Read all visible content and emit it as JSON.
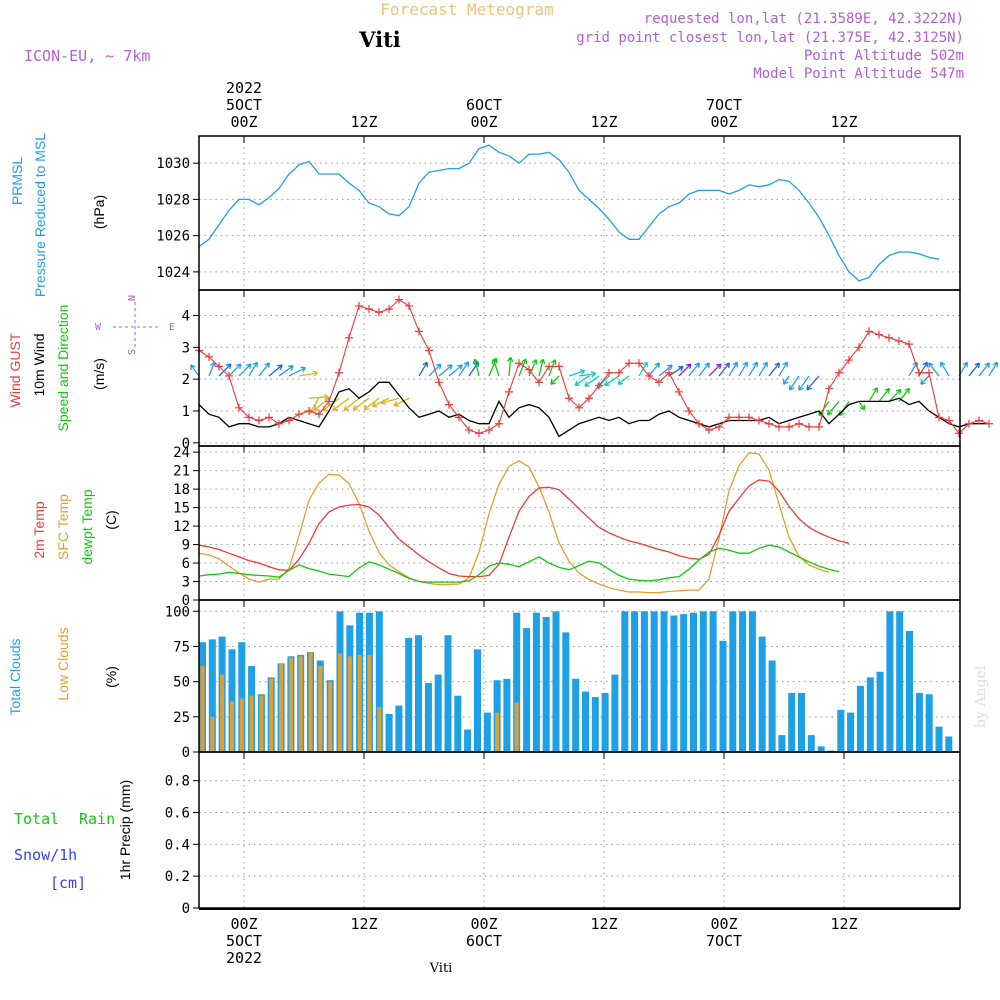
{
  "header": {
    "product": "Forecast Meteogram",
    "model": "ICON-EU, ~ 7km",
    "station": "Viti",
    "requested": "requested lon,lat (21.3589E, 42.3222N)",
    "gridpoint": "grid point closest lon,lat (21.375E, 42.3125N)",
    "point_alt": "Point Altitude 502m",
    "model_alt": "Model Point Altitude 547m",
    "credit": "by Angel",
    "footer_station": "Viti"
  },
  "colors": {
    "pressure": "#1ea0e6",
    "gust": "#e83c3c",
    "wind": "#000000",
    "dir": "#10c810",
    "temp2m": "#e83c3c",
    "sfc": "#e0a030",
    "dewpt": "#10c810",
    "total_clouds": "#1ea0e6",
    "low_clouds": "#e0a030",
    "rain": "#10c810",
    "snow": "#3c3cf0",
    "label_purple": "#b060d0",
    "compass": "#b060d0"
  },
  "chart_data": {
    "type": "line",
    "hours": 63,
    "time_axis": {
      "top_ticks": [
        "2022\n5OCT\n00Z",
        "12Z",
        "6OCT\n00Z",
        "12Z",
        "7OCT\n00Z",
        "12Z"
      ],
      "bottom_ticks": [
        "00Z\n5OCT\n2022",
        "12Z",
        "00Z\n6OCT",
        "12Z",
        "00Z\n7OCT",
        "12Z"
      ],
      "tick_hours": [
        5,
        17,
        29,
        41,
        53,
        65
      ]
    },
    "pressure": {
      "labels": [
        "PRMSL",
        "Pressure Reduced to MSL"
      ],
      "unit": "(hPa)",
      "ylim": [
        1023,
        1031.5
      ],
      "ticks": [
        1024,
        1026,
        1028,
        1030
      ],
      "values": [
        1025.4,
        1025.8,
        1026.6,
        1027.4,
        1028.0,
        1028.0,
        1027.7,
        1028.1,
        1028.6,
        1029.4,
        1029.9,
        1030.1,
        1029.4,
        1029.4,
        1029.4,
        1028.9,
        1028.5,
        1027.8,
        1027.6,
        1027.2,
        1027.1,
        1027.6,
        1028.9,
        1029.5,
        1029.6,
        1029.7,
        1029.7,
        1030.0,
        1030.8,
        1031.0,
        1030.6,
        1030.4,
        1030.0,
        1030.5,
        1030.5,
        1030.6,
        1030.2,
        1029.5,
        1028.5,
        1028.0,
        1027.5,
        1026.9,
        1026.2,
        1025.8,
        1025.8,
        1026.5,
        1027.2,
        1027.6,
        1027.8,
        1028.3,
        1028.5,
        1028.5,
        1028.5,
        1028.3,
        1028.5,
        1028.8,
        1028.7,
        1028.8,
        1029.1,
        1029.0,
        1028.5,
        1027.8,
        1027.0,
        1026.0,
        1024.9,
        1024.0,
        1023.5,
        1023.7,
        1024.4,
        1024.9,
        1025.1,
        1025.1,
        1025.0,
        1024.8,
        1024.7
      ]
    },
    "wind": {
      "labels": [
        "Wind GUST",
        "10m Wind",
        "Speed and Direction"
      ],
      "unit": "(m/s)",
      "ylim": [
        -0.1,
        4.8
      ],
      "ticks": [
        0,
        1,
        2,
        3,
        4
      ],
      "gust": [
        2.9,
        2.7,
        2.4,
        2.1,
        1.1,
        0.8,
        0.7,
        0.8,
        0.6,
        0.7,
        0.9,
        1.0,
        0.9,
        1.3,
        2.2,
        3.3,
        4.3,
        4.2,
        4.1,
        4.2,
        4.5,
        4.3,
        3.5,
        2.9,
        1.9,
        1.2,
        0.8,
        0.4,
        0.3,
        0.4,
        0.6,
        1.6,
        2.5,
        2.3,
        1.9,
        2.4,
        2.4,
        1.4,
        1.1,
        1.4,
        1.8,
        2.2,
        2.2,
        2.5,
        2.5,
        2.1,
        1.9,
        2.2,
        1.6,
        1.0,
        0.6,
        0.4,
        0.5,
        0.8,
        0.8,
        0.8,
        0.7,
        0.6,
        0.5,
        0.5,
        0.6,
        0.5,
        0.5,
        1.7,
        2.2,
        2.6,
        3.0,
        3.5,
        3.4,
        3.3,
        3.2,
        3.1,
        2.2,
        2.2,
        0.8,
        0.7,
        0.3,
        0.6,
        0.7,
        0.6
      ],
      "speed": [
        1.2,
        0.9,
        0.8,
        0.5,
        0.6,
        0.6,
        0.5,
        0.5,
        0.6,
        0.8,
        0.7,
        0.6,
        0.5,
        1.0,
        1.6,
        1.7,
        1.4,
        1.6,
        1.9,
        1.9,
        1.5,
        1.1,
        0.8,
        0.9,
        1.0,
        0.8,
        0.9,
        0.7,
        0.6,
        0.6,
        1.3,
        0.8,
        1.1,
        1.2,
        1.1,
        0.8,
        0.2,
        0.4,
        0.6,
        0.7,
        0.8,
        0.7,
        0.8,
        0.6,
        0.7,
        0.7,
        0.9,
        1.0,
        0.8,
        0.7,
        0.6,
        0.5,
        0.6,
        0.7,
        0.7,
        0.7,
        0.7,
        0.8,
        0.6,
        0.7,
        0.8,
        0.9,
        1.0,
        0.6,
        0.9,
        1.2,
        1.3,
        1.3,
        1.3,
        1.3,
        1.4,
        1.2,
        1.3,
        1.0,
        0.8,
        0.6,
        0.5,
        0.6,
        0.6,
        0.6
      ],
      "barb_u": [
        -0.3,
        0.2,
        0.5,
        0.5,
        0.5,
        0.3,
        0.4,
        0.6,
        0.7,
        1.0,
        1.2,
        1.4,
        -0.5,
        -1.0,
        -1.3,
        -1.2,
        -1.0,
        -1.1,
        -0.9,
        -1.0,
        -1.1,
        -0.6,
        0.3,
        0.5,
        0.6,
        0.6,
        0.4,
        0.4,
        -0.2,
        0.5,
        -0.3,
        0.1,
        0.4,
        0.4,
        0.2,
        0.3,
        -0.3,
        0.6,
        0.7,
        -0.6,
        -0.7,
        -0.5,
        -0.6,
        -0.4,
        0.3,
        0.4,
        0.6,
        0.6,
        0.5,
        0.4,
        0.4,
        0.5,
        0.4,
        0.3,
        0.3,
        0.3,
        0.3,
        0.4,
        0.3,
        -0.2,
        -0.4,
        -0.5,
        -0.7,
        -0.5,
        -0.6,
        -0.4,
        0.2,
        0.3,
        0.4,
        0.5,
        0.4,
        0.3,
        0.3,
        -0.3,
        -0.4,
        -0.3,
        0.3,
        0.4,
        0.4,
        0.3
      ],
      "barb_v": [
        0.4,
        0.5,
        0.5,
        0.5,
        0.5,
        0.5,
        0.5,
        0.5,
        0.5,
        0.5,
        0.2,
        0.1,
        -0.8,
        -0.8,
        -1.0,
        -0.9,
        -0.8,
        -0.8,
        -0.7,
        -0.5,
        -0.3,
        -0.3,
        0.5,
        0.5,
        0.5,
        0.5,
        0.6,
        0.6,
        0.8,
        1.2,
        0.9,
        1.2,
        1.0,
        0.9,
        0.8,
        0.8,
        -0.3,
        0.2,
        0.1,
        -0.4,
        -0.5,
        -0.5,
        -0.4,
        -0.3,
        0.5,
        0.5,
        0.5,
        0.4,
        0.5,
        0.5,
        0.5,
        0.5,
        0.5,
        0.5,
        0.5,
        0.5,
        0.5,
        0.5,
        0.5,
        -0.3,
        -0.6,
        -0.7,
        -0.8,
        -0.7,
        -0.7,
        -0.6,
        -0.3,
        0.5,
        0.5,
        0.5,
        0.5,
        0.5,
        0.5,
        -0.3,
        0.5,
        0.5,
        0.5,
        0.5,
        0.5,
        0.5
      ],
      "compass": [
        "N",
        "S",
        "W",
        "E"
      ]
    },
    "temperature": {
      "labels": [
        "2m Temp",
        "SFC Temp",
        "dewpt Temp"
      ],
      "unit": "(C)",
      "ylim": [
        0,
        25
      ],
      "ticks": [
        0,
        3,
        6,
        9,
        12,
        15,
        18,
        21,
        24
      ],
      "t2m": [
        8.9,
        8.6,
        8.2,
        7.6,
        7.0,
        6.4,
        6.0,
        5.4,
        4.9,
        4.8,
        6.6,
        9.2,
        12.4,
        14.3,
        15.1,
        15.4,
        15.5,
        15.1,
        13.8,
        11.8,
        9.9,
        8.6,
        7.3,
        6.2,
        5.2,
        4.3,
        3.9,
        3.8,
        3.8,
        4.0,
        5.8,
        10.2,
        14.4,
        16.8,
        18.2,
        18.3,
        17.9,
        16.4,
        14.8,
        13.3,
        11.8,
        10.9,
        10.2,
        9.6,
        9.2,
        8.7,
        8.2,
        7.8,
        7.2,
        6.8,
        6.6,
        7.4,
        10.5,
        14.4,
        16.5,
        18.5,
        19.5,
        19.3,
        17.7,
        15.2,
        13.2,
        11.8,
        10.9,
        10.2,
        9.6,
        9.2
      ],
      "sfc": [
        7.6,
        7.3,
        6.7,
        5.5,
        4.4,
        3.4,
        2.9,
        3.4,
        3.4,
        5.1,
        10.4,
        16.2,
        19.0,
        20.4,
        20.3,
        18.9,
        15.7,
        11.2,
        7.7,
        5.7,
        4.6,
        3.6,
        3.0,
        2.7,
        2.5,
        2.5,
        2.6,
        3.6,
        7.8,
        14.0,
        18.8,
        21.7,
        22.6,
        21.6,
        18.4,
        14.3,
        9.3,
        6.3,
        4.4,
        3.3,
        2.6,
        2.0,
        1.6,
        1.3,
        1.3,
        1.2,
        1.2,
        1.4,
        1.5,
        1.6,
        1.6,
        3.4,
        10.0,
        17.7,
        21.8,
        23.9,
        23.7,
        21.1,
        15.6,
        10.2,
        7.1,
        5.7,
        5.0,
        4.5
      ],
      "dewpt": [
        3.9,
        4.1,
        4.2,
        4.5,
        4.3,
        4.1,
        4.0,
        3.9,
        3.7,
        4.8,
        5.7,
        5.1,
        4.7,
        4.2,
        4.0,
        3.8,
        5.2,
        6.2,
        5.7,
        5.0,
        4.3,
        3.5,
        3.0,
        2.9,
        2.9,
        2.9,
        2.9,
        3.1,
        4.1,
        5.5,
        6.0,
        5.8,
        5.4,
        6.2,
        7.0,
        6.0,
        5.3,
        4.9,
        5.6,
        6.3,
        6.0,
        5.0,
        4.0,
        3.4,
        3.2,
        3.1,
        3.3,
        3.6,
        3.8,
        5.0,
        6.5,
        7.8,
        8.4,
        8.1,
        7.6,
        7.6,
        8.4,
        8.9,
        8.6,
        7.8,
        7.0,
        6.2,
        5.5,
        5.0,
        4.6
      ]
    },
    "clouds": {
      "type": "bar",
      "labels": [
        "Total Clouds",
        "Low Clouds"
      ],
      "unit": "(%)",
      "ylim": [
        0,
        108
      ],
      "ticks": [
        0,
        25,
        50,
        75,
        100
      ],
      "total": [
        78,
        80,
        82,
        73,
        78,
        61,
        41,
        53,
        63,
        68,
        69,
        71,
        65,
        51,
        100,
        90,
        99,
        99,
        100,
        27,
        33,
        81,
        83,
        49,
        55,
        83,
        40,
        16,
        73,
        28,
        51,
        52,
        99,
        88,
        99,
        96,
        100,
        85,
        52,
        43,
        39,
        42,
        55,
        100,
        100,
        100,
        100,
        100,
        97,
        98,
        99,
        100,
        100,
        79,
        100,
        100,
        100,
        82,
        65,
        12,
        42,
        42,
        12,
        4,
        1,
        30,
        28,
        47,
        53,
        57,
        100,
        100,
        86,
        42,
        41,
        18,
        11,
        26
      ],
      "low": [
        61,
        25,
        55,
        36,
        38,
        40,
        40,
        52,
        63,
        67,
        68,
        71,
        61,
        50,
        70,
        68,
        69,
        69,
        32,
        0,
        0,
        0,
        0,
        0,
        0,
        0,
        0,
        0,
        0,
        0,
        28,
        0,
        35,
        0,
        0,
        0,
        0,
        0,
        0,
        0,
        0,
        0,
        0,
        0,
        0,
        0,
        0,
        0,
        0,
        0,
        0,
        0,
        0,
        0,
        0,
        0,
        0,
        0,
        0,
        0,
        0,
        0,
        0,
        0,
        0,
        0,
        0,
        0,
        0,
        0,
        0,
        0,
        0,
        0,
        0,
        0,
        0,
        0
      ]
    },
    "precip": {
      "type": "bar",
      "labels": [
        "Total",
        "Rain",
        "Snow/1h",
        "[cm]"
      ],
      "unit": "1hr Precip (mm)",
      "ylim": [
        0,
        0.98
      ],
      "ticks": [
        "0",
        "0.2",
        "0.4",
        "0.6",
        "0.8"
      ],
      "tick_values": [
        0,
        0.2,
        0.4,
        0.6,
        0.8
      ],
      "total": [],
      "snow": []
    }
  }
}
